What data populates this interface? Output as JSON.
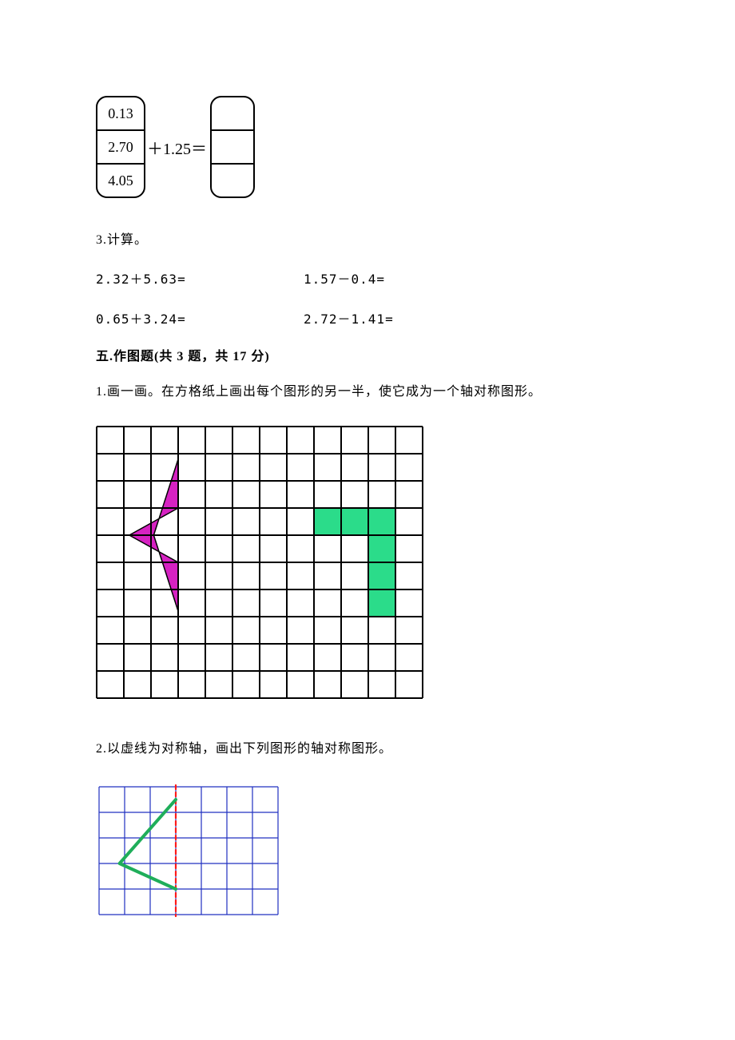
{
  "equationFigure": {
    "leftStack": [
      "0.13",
      "2.70",
      "4.05"
    ],
    "operatorText": "＋1.25＝",
    "rightStackCount": 3,
    "borderColor": "#000000",
    "borderRadiusPx": 14,
    "cellWidthLeftPx": 58,
    "cellWidthRightPx": 52,
    "cellHeightPx": 40,
    "fontFamily": "Times New Roman",
    "fontSizePt": 14
  },
  "q3": {
    "headline": "3.计算。",
    "items": [
      "2.32＋5.63=",
      "1.57－0.4=",
      "0.65＋3.24=",
      "2.72－1.41="
    ]
  },
  "section5": {
    "title": "五.作图题(共 3 题，共 17 分)"
  },
  "q5_1": {
    "text": "1.画一画。在方格纸上画出每个图形的另一半，使它成为一个轴对称图形。",
    "grid": {
      "cols": 12,
      "rows": 10,
      "cellPx": 34,
      "strokeColor": "#000000",
      "strokeWidth": 2,
      "background": "#ffffff",
      "greenFill": "#2bdc8a",
      "greenCells": [
        [
          8,
          3
        ],
        [
          9,
          3
        ],
        [
          10,
          3
        ],
        [
          10,
          4
        ],
        [
          10,
          5
        ],
        [
          10,
          6
        ]
      ],
      "arrow": {
        "fill": "#d622c2",
        "stroke": "#000000",
        "points": [
          [
            3,
            1.2
          ],
          [
            3,
            3
          ],
          [
            1.2,
            4
          ],
          [
            3,
            5
          ],
          [
            3,
            6.8
          ],
          [
            2.1,
            4
          ]
        ]
      }
    }
  },
  "q5_2": {
    "text": "2.以虚线为对称轴，画出下列图形的轴对称图形。",
    "grid": {
      "cols": 7,
      "rows": 5,
      "cellPx": 32,
      "strokeColor": "#2030c0",
      "strokeWidth": 1.2,
      "background": "#ffffff",
      "axis": {
        "col": 3,
        "color": "#ff1a1a",
        "dash": "5,4",
        "width": 2.2
      },
      "shape": {
        "stroke": "#1fae5a",
        "width": 4,
        "points": [
          [
            3,
            0.5
          ],
          [
            0.8,
            3
          ],
          [
            3,
            4
          ]
        ]
      }
    }
  }
}
